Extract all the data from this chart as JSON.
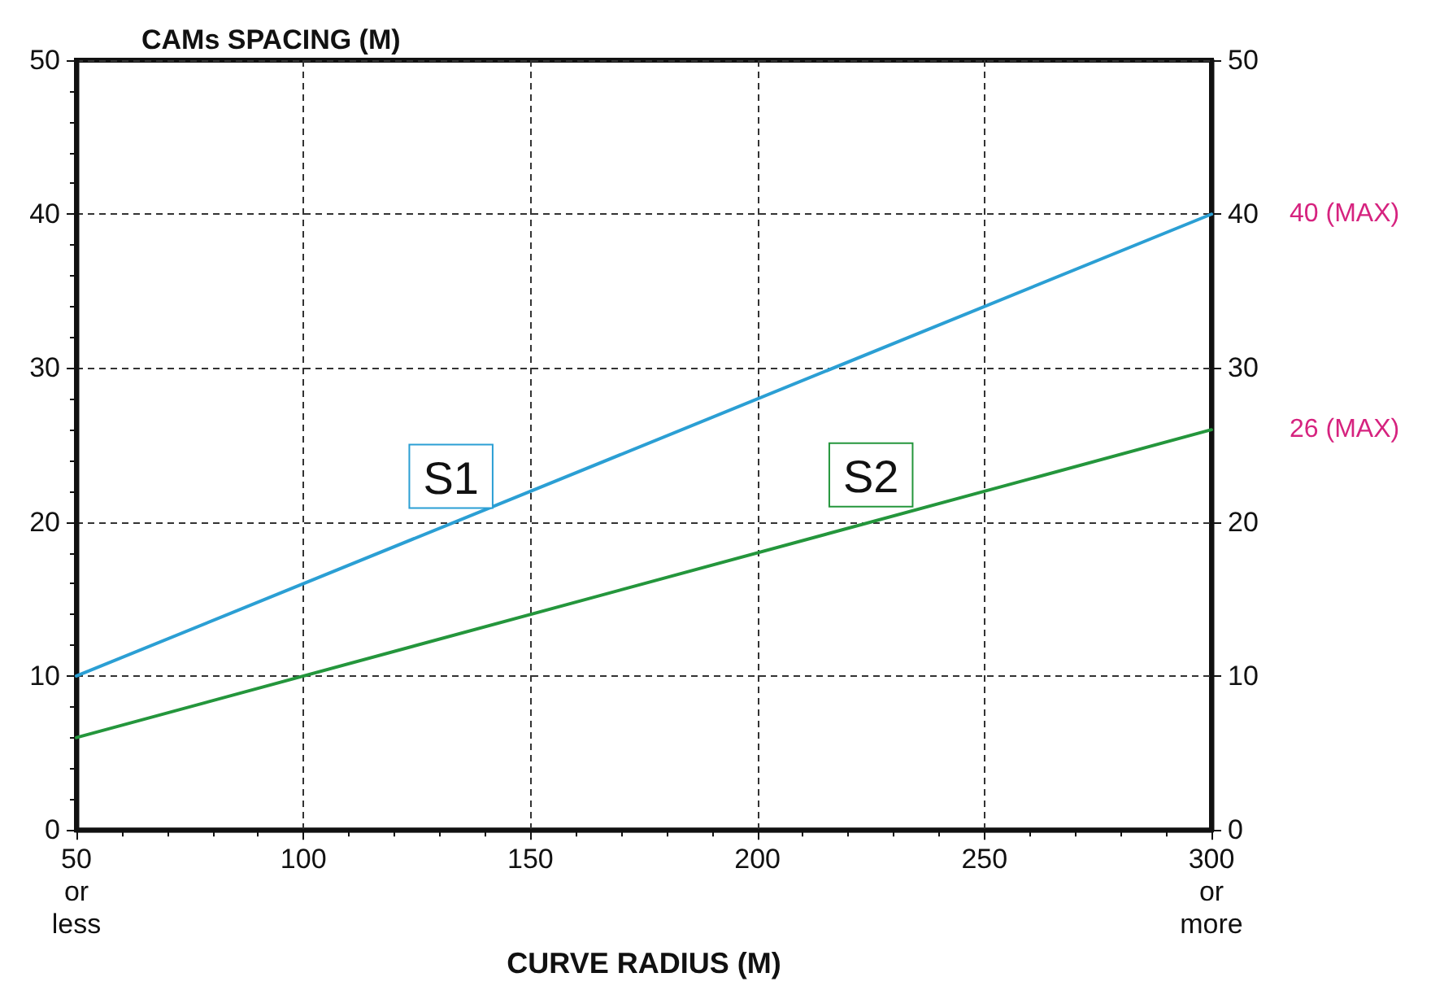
{
  "chart_data": {
    "type": "line",
    "xlabel": "CURVE RADIUS (M)",
    "ylabel": "CAMs SPACING (M)",
    "x": [
      50,
      300
    ],
    "series": [
      {
        "name": "S1",
        "color": "#2b9fd4",
        "values": [
          10,
          40
        ]
      },
      {
        "name": "S2",
        "color": "#24963c",
        "values": [
          6,
          26
        ]
      }
    ],
    "xlim": [
      50,
      300
    ],
    "xticks": [
      {
        "value": 50,
        "label": "50\nor\nless"
      },
      100,
      150,
      200,
      250,
      {
        "value": 300,
        "label": "300\nor\nmore"
      }
    ],
    "ylim": [
      0,
      50
    ],
    "yticks": [
      0,
      10,
      20,
      30,
      40,
      50
    ],
    "y2lim": [
      0,
      50
    ],
    "y2ticks": [
      0,
      10,
      20,
      30,
      40,
      50
    ],
    "annotations": [
      {
        "text": "40 (MAX)",
        "x": 300,
        "y": 40
      },
      {
        "text": "26 (MAX)",
        "x": 300,
        "y": 26
      }
    ],
    "grid": true,
    "marker": "none",
    "line_style": "solid",
    "legend": false
  }
}
